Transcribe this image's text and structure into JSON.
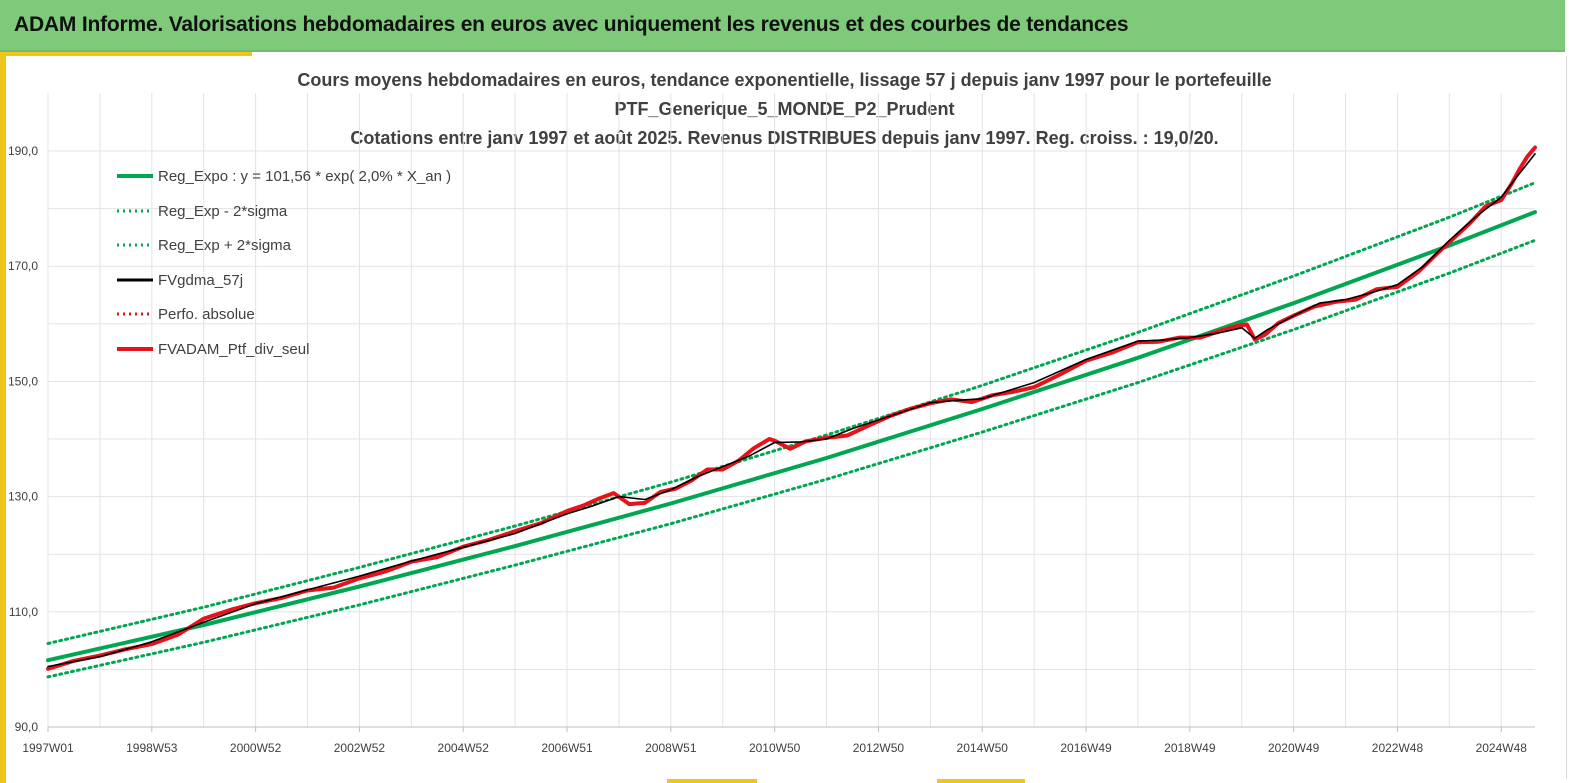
{
  "banner": {
    "title": "ADAM Informe. Valorisations hebdomadaires en euros avec uniquement les revenus et des courbes de tendances"
  },
  "colors": {
    "banner_bg": "#7fc97b",
    "accent": "#f0c419",
    "trend_green": "#00a651",
    "smooth_black": "#000000",
    "perf_red": "#e8121b"
  },
  "chart_data": {
    "type": "line",
    "title_lines": [
      "Cours moyens hebdomadaires  en euros, tendance exponentielle, lissage 57 j depuis janv 1997 pour le portefeuille",
      "PTF_Generique_5_MONDE_P2_Prudent",
      "Cotations  entre janv 1997 et août  2025. Revenus DISTRIBUES depuis janv 1997. Reg. croiss. : 19,0/20."
    ],
    "xlabel": "",
    "ylabel": "",
    "x_tick_labels": [
      "1997W01",
      "1998W53",
      "2000W52",
      "2002W52",
      "2004W52",
      "2006W51",
      "2008W51",
      "2010W50",
      "2012W50",
      "2014W50",
      "2016W49",
      "2018W49",
      "2020W49",
      "2022W48",
      "2024W48"
    ],
    "x_tick_years": [
      1997.0,
      1999.0,
      2001.0,
      2003.0,
      2005.0,
      2007.0,
      2009.0,
      2011.0,
      2013.0,
      2015.0,
      2017.0,
      2019.0,
      2021.0,
      2023.0,
      2025.0
    ],
    "y_tick_labels": [
      "90,0",
      "110,0",
      "130,0",
      "150,0",
      "170,0",
      "190,0"
    ],
    "y_ticks": [
      90,
      110,
      130,
      150,
      170,
      190
    ],
    "xlim": [
      1997.0,
      2025.65
    ],
    "ylim": [
      90,
      190
    ],
    "grid": true,
    "legend_position": "top-left",
    "legend": [
      {
        "label": "Reg_Expo : y = 101,56 * exp( 2,0% *  X_an )",
        "color": "#00a651",
        "style": "solid-thick"
      },
      {
        "label": "Reg_Exp - 2*sigma",
        "color": "#00a651",
        "style": "dotted"
      },
      {
        "label": "Reg_Exp + 2*sigma",
        "color": "#00a651",
        "style": "dotted"
      },
      {
        "label": "FVgdma_57j",
        "color": "#000000",
        "style": "solid"
      },
      {
        "label": "Perfo. absolue",
        "color": "#e8121b",
        "style": "dotted"
      },
      {
        "label": "FVADAM_Ptf_div_seul",
        "color": "#e8121b",
        "style": "solid-thick"
      }
    ],
    "series": [
      {
        "name": "Reg_Expo : y = 101,56 * exp( 2,0% *  X_an )",
        "x": [
          1997.0,
          2000.0,
          2003.0,
          2006.0,
          2009.0,
          2012.0,
          2015.0,
          2018.0,
          2021.0,
          2024.0,
          2025.65
        ],
        "values": [
          101.6,
          107.7,
          114.4,
          121.4,
          128.8,
          136.7,
          145.2,
          154.1,
          163.6,
          173.6,
          179.4
        ]
      },
      {
        "name": "Reg_Exp - 2*sigma",
        "x": [
          1997.0,
          2000.0,
          2003.0,
          2006.0,
          2009.0,
          2012.0,
          2015.0,
          2018.0,
          2021.0,
          2024.0,
          2025.65
        ],
        "values": [
          98.7,
          104.7,
          111.2,
          118.1,
          125.3,
          133.0,
          141.2,
          149.8,
          159.0,
          168.8,
          174.5
        ]
      },
      {
        "name": "Reg_Exp + 2*sigma",
        "x": [
          1997.0,
          2000.0,
          2003.0,
          2006.0,
          2009.0,
          2012.0,
          2015.0,
          2018.0,
          2021.0,
          2024.0,
          2025.65
        ],
        "values": [
          104.5,
          110.8,
          117.7,
          124.9,
          132.5,
          140.7,
          149.3,
          158.5,
          168.3,
          178.5,
          184.5
        ]
      },
      {
        "name": "FVgdma_57j",
        "x": [
          1997.0,
          1998.0,
          1999.0,
          2000.0,
          2001.0,
          2002.0,
          2003.0,
          2004.0,
          2005.0,
          2006.0,
          2007.0,
          2007.5,
          2008.0,
          2008.5,
          2009.0,
          2009.5,
          2010.0,
          2010.5,
          2011.0,
          2011.5,
          2012.0,
          2012.5,
          2013.0,
          2014.0,
          2014.5,
          2015.0,
          2016.0,
          2017.0,
          2018.0,
          2018.5,
          2019.0,
          2019.5,
          2020.0,
          2020.25,
          2020.5,
          2021.0,
          2021.5,
          2022.0,
          2022.5,
          2023.0,
          2023.5,
          2024.0,
          2024.5,
          2025.0,
          2025.3,
          2025.65
        ],
        "values": [
          100.5,
          102.2,
          104.8,
          108.2,
          111.4,
          113.8,
          116.2,
          118.8,
          121.2,
          123.6,
          127.0,
          128.4,
          130.0,
          129.5,
          131.2,
          133.4,
          135.2,
          137.0,
          139.4,
          139.5,
          140.0,
          141.8,
          143.3,
          146.3,
          146.7,
          147.0,
          149.8,
          153.8,
          157.0,
          157.2,
          157.6,
          158.3,
          159.3,
          157.5,
          159.0,
          161.4,
          163.6,
          164.2,
          165.4,
          166.8,
          170.0,
          174.5,
          178.5,
          182.0,
          185.5,
          189.5
        ]
      },
      {
        "name": "FVADAM_Ptf_div_seul",
        "x": [
          1997.0,
          1997.5,
          1998.0,
          1998.5,
          1999.0,
          1999.5,
          2000.0,
          2000.5,
          2001.0,
          2001.5,
          2002.0,
          2002.5,
          2003.0,
          2003.5,
          2004.0,
          2004.5,
          2005.0,
          2005.5,
          2006.0,
          2006.5,
          2007.0,
          2007.3,
          2007.6,
          2007.9,
          2008.2,
          2008.5,
          2008.8,
          2009.1,
          2009.4,
          2009.7,
          2010.0,
          2010.3,
          2010.6,
          2010.9,
          2011.0,
          2011.3,
          2011.6,
          2012.0,
          2012.4,
          2012.8,
          2013.2,
          2013.6,
          2014.0,
          2014.4,
          2014.8,
          2015.2,
          2015.6,
          2016.0,
          2016.5,
          2017.0,
          2017.5,
          2018.0,
          2018.4,
          2018.8,
          2019.2,
          2019.6,
          2019.9,
          2020.1,
          2020.25,
          2020.45,
          2020.7,
          2021.0,
          2021.4,
          2021.8,
          2022.2,
          2022.6,
          2023.0,
          2023.4,
          2023.8,
          2024.1,
          2024.4,
          2024.7,
          2025.0,
          2025.2,
          2025.35,
          2025.5,
          2025.65
        ],
        "values": [
          100.1,
          101.5,
          102.4,
          103.5,
          104.4,
          106.0,
          108.8,
          110.3,
          111.5,
          112.4,
          113.7,
          114.2,
          115.8,
          117.0,
          118.7,
          119.5,
          121.3,
          122.5,
          124.0,
          125.4,
          127.5,
          128.4,
          129.6,
          130.6,
          128.7,
          128.9,
          130.8,
          131.4,
          132.8,
          134.7,
          134.7,
          136.2,
          138.4,
          140.0,
          139.7,
          138.3,
          139.6,
          140.2,
          140.6,
          142.3,
          143.9,
          145.2,
          146.2,
          146.9,
          146.4,
          147.6,
          148.2,
          149.0,
          151.2,
          153.6,
          155.0,
          156.8,
          156.9,
          157.6,
          157.6,
          158.8,
          159.6,
          159.9,
          157.3,
          158.1,
          160.1,
          161.4,
          163.0,
          163.8,
          164.2,
          166.0,
          166.4,
          169.0,
          172.5,
          175.0,
          177.5,
          180.4,
          181.5,
          184.3,
          186.8,
          189.0,
          190.6
        ]
      }
    ]
  }
}
